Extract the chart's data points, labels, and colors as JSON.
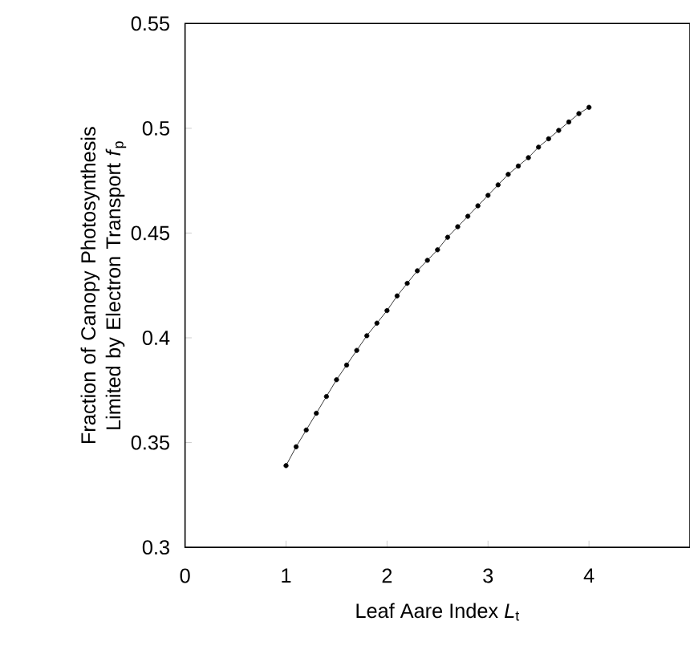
{
  "chart_data": {
    "type": "line",
    "xlabel": "Leaf Aare Index *L*$_{t}$",
    "ylabel": "Fraction of Canopy Photosynthesis Limited by Electron Transport  *f*$_{p}$",
    "x": [
      1.0,
      1.1,
      1.2,
      1.3,
      1.4,
      1.5,
      1.6,
      1.7,
      1.8,
      1.9,
      2.0,
      2.1,
      2.2,
      2.3,
      2.4,
      2.5,
      2.6,
      2.7,
      2.8,
      2.9,
      3.0,
      3.1,
      3.2,
      3.3,
      3.4,
      3.5,
      3.6,
      3.7,
      3.8,
      3.9,
      4.0
    ],
    "values": [
      0.339,
      0.348,
      0.356,
      0.364,
      0.372,
      0.38,
      0.387,
      0.394,
      0.401,
      0.407,
      0.413,
      0.42,
      0.426,
      0.432,
      0.437,
      0.442,
      0.448,
      0.453,
      0.458,
      0.463,
      0.468,
      0.473,
      0.478,
      0.482,
      0.486,
      0.491,
      0.495,
      0.499,
      0.503,
      0.507,
      0.51
    ],
    "color": "#000000",
    "marker": "circle",
    "line_style": "solid",
    "xlim": [
      0,
      5
    ],
    "xticks": [
      0,
      1,
      2,
      3,
      4
    ],
    "ylim": [
      0.3,
      0.55
    ],
    "yticks": [
      0.3,
      0.35,
      0.4,
      0.45,
      0.5,
      0.55
    ]
  }
}
